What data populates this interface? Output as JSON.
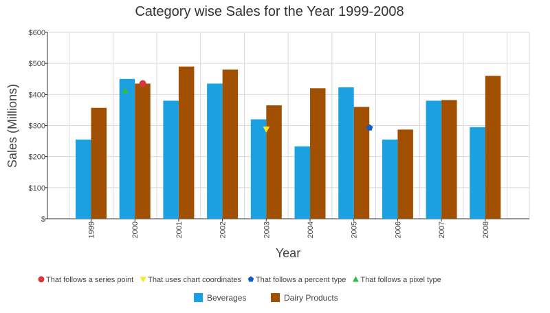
{
  "chart_data": {
    "type": "bar",
    "title": "Category wise Sales for the Year 1999-2008",
    "xlabel": "Year",
    "ylabel": "Sales (Millions)",
    "categories": [
      "1999",
      "2000",
      "2001",
      "2002",
      "2003",
      "2004",
      "2005",
      "2006",
      "2007",
      "2008"
    ],
    "ylim": [
      0,
      600
    ],
    "yticks": [
      {
        "value": 0,
        "label": "$"
      },
      {
        "value": 100,
        "label": "$100"
      },
      {
        "value": 200,
        "label": "$200"
      },
      {
        "value": 300,
        "label": "$300"
      },
      {
        "value": 400,
        "label": "$400"
      },
      {
        "value": 500,
        "label": "$500"
      },
      {
        "value": 600,
        "label": "$600"
      }
    ],
    "grid": true,
    "legend_position": "bottom",
    "series": [
      {
        "name": "Beverages",
        "color": "#1ba1e2",
        "values": [
          255,
          450,
          380,
          435,
          320,
          233,
          423,
          255,
          380,
          295
        ]
      },
      {
        "name": "Dairy Products",
        "color": "#a05000",
        "values": [
          357,
          435,
          490,
          480,
          365,
          420,
          360,
          287,
          382,
          460
        ]
      }
    ],
    "annotations": [
      {
        "label": "That follows a series point",
        "shape": "circle",
        "color": "#d7373a",
        "x": "2000",
        "x_offset": 0.18,
        "y": 435
      },
      {
        "label": "That uses chart coordinates",
        "shape": "triangle-down",
        "color": "#f8e71c",
        "x": "2003",
        "x_offset": 0.0,
        "y": 288
      },
      {
        "label": "That follows a percent type",
        "shape": "pentagon",
        "color": "#0b5fc7",
        "x": "2005",
        "x_offset": 0.36,
        "y": 293
      },
      {
        "label": "That follows a pixel type",
        "shape": "triangle-up",
        "color": "#2ebd4d",
        "x": "2000",
        "x_offset": -0.22,
        "y": 412
      }
    ]
  }
}
